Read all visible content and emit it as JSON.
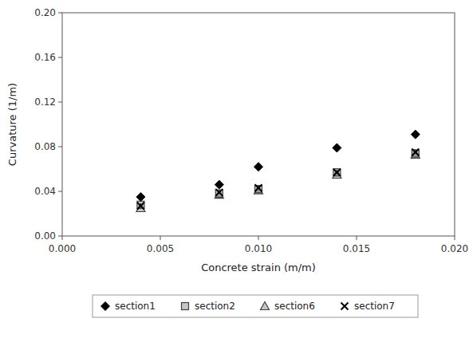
{
  "chart_data": {
    "type": "scatter",
    "x_label": "Concrete strain (m/m)",
    "y_label": "Curvature (1/m)",
    "x": [
      0.004,
      0.008,
      0.01,
      0.014,
      0.018
    ],
    "series": [
      {
        "name": "section1",
        "color": "#000000",
        "marker": "diamond",
        "values": [
          0.035,
          0.046,
          0.062,
          0.079,
          0.091
        ]
      },
      {
        "name": "section2",
        "color": "#404040",
        "marker": "square",
        "values": [
          0.028,
          0.038,
          0.042,
          0.057,
          0.074
        ]
      },
      {
        "name": "section6",
        "color": "#404040",
        "marker": "triangle",
        "values": [
          0.025,
          0.037,
          0.041,
          0.055,
          0.073
        ]
      },
      {
        "name": "section7",
        "color": "#000000",
        "marker": "x",
        "values": [
          0.027,
          0.039,
          0.043,
          0.057,
          0.075
        ]
      }
    ],
    "xlim": [
      0.0,
      0.02
    ],
    "ylim": [
      0.0,
      0.2
    ],
    "xticks": [
      {
        "value": 0,
        "label": "0.000"
      },
      0.005,
      {
        "value": 0.01,
        "label": "0.010"
      },
      0.015,
      {
        "value": 0.02,
        "label": "0.020"
      }
    ],
    "yticks": [
      {
        "value": 0,
        "label": "0.00"
      },
      0.04,
      0.08,
      0.12,
      0.16,
      {
        "value": 0.2,
        "label": "0.20"
      }
    ],
    "grid": false,
    "legend": "bottom"
  }
}
